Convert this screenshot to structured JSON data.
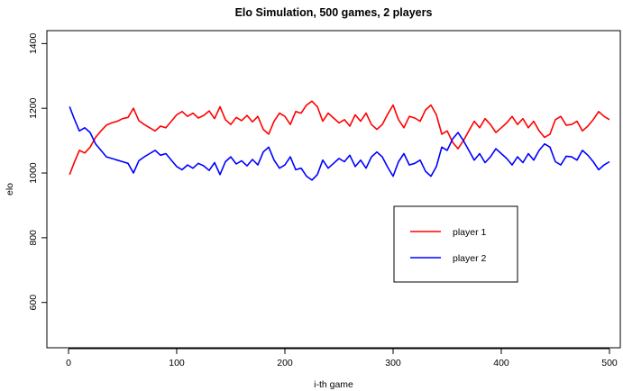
{
  "chart_data": {
    "type": "line",
    "title": "Elo Simulation, 500 games, 2 players",
    "xlabel": "i-th game",
    "ylabel": "elo",
    "xlim": [
      -20,
      510
    ],
    "ylim": [
      460,
      1440
    ],
    "xticks": [
      0,
      100,
      200,
      300,
      400,
      500
    ],
    "yticks": [
      600,
      800,
      1000,
      1200,
      1400
    ],
    "xtick_labels": [
      "0",
      "100",
      "200",
      "300",
      "400",
      "500"
    ],
    "ytick_labels": [
      "600",
      "800",
      "1000",
      "1200",
      "1400"
    ],
    "grid": false,
    "legend_position": "center-right",
    "series": [
      {
        "name": "player 1",
        "color": "#ff0000",
        "x": [
          1,
          5,
          10,
          15,
          20,
          25,
          30,
          35,
          40,
          45,
          50,
          55,
          60,
          65,
          70,
          75,
          80,
          85,
          90,
          95,
          100,
          105,
          110,
          115,
          120,
          125,
          130,
          135,
          140,
          145,
          150,
          155,
          160,
          165,
          170,
          175,
          180,
          185,
          190,
          195,
          200,
          205,
          210,
          215,
          220,
          225,
          230,
          235,
          240,
          245,
          250,
          255,
          260,
          265,
          270,
          275,
          280,
          285,
          290,
          295,
          300,
          305,
          310,
          315,
          320,
          325,
          330,
          335,
          340,
          345,
          350,
          355,
          360,
          365,
          370,
          375,
          380,
          385,
          390,
          395,
          400,
          405,
          410,
          415,
          420,
          425,
          430,
          435,
          440,
          445,
          450,
          455,
          460,
          465,
          470,
          475,
          480,
          485,
          490,
          495,
          500
        ],
        "values": [
          995,
          1030,
          1070,
          1062,
          1080,
          1110,
          1130,
          1148,
          1155,
          1160,
          1168,
          1172,
          1200,
          1162,
          1150,
          1140,
          1130,
          1145,
          1140,
          1160,
          1180,
          1190,
          1175,
          1185,
          1170,
          1178,
          1192,
          1168,
          1205,
          1165,
          1150,
          1172,
          1162,
          1178,
          1158,
          1175,
          1135,
          1120,
          1160,
          1185,
          1175,
          1150,
          1190,
          1185,
          1210,
          1222,
          1205,
          1160,
          1185,
          1170,
          1155,
          1165,
          1145,
          1180,
          1160,
          1185,
          1150,
          1135,
          1150,
          1182,
          1210,
          1165,
          1140,
          1175,
          1170,
          1160,
          1195,
          1210,
          1180,
          1120,
          1130,
          1095,
          1075,
          1100,
          1130,
          1160,
          1140,
          1168,
          1150,
          1125,
          1140,
          1155,
          1175,
          1150,
          1168,
          1140,
          1160,
          1130,
          1110,
          1120,
          1165,
          1175,
          1148,
          1150,
          1160,
          1130,
          1145,
          1165,
          1190,
          1175,
          1165
        ]
      },
      {
        "name": "player 2",
        "color": "#0000ff",
        "x": [
          1,
          5,
          10,
          15,
          20,
          25,
          30,
          35,
          40,
          45,
          50,
          55,
          60,
          65,
          70,
          75,
          80,
          85,
          90,
          95,
          100,
          105,
          110,
          115,
          120,
          125,
          130,
          135,
          140,
          145,
          150,
          155,
          160,
          165,
          170,
          175,
          180,
          185,
          190,
          195,
          200,
          205,
          210,
          215,
          220,
          225,
          230,
          235,
          240,
          245,
          250,
          255,
          260,
          265,
          270,
          275,
          280,
          285,
          290,
          295,
          300,
          305,
          310,
          315,
          320,
          325,
          330,
          335,
          340,
          345,
          350,
          355,
          360,
          365,
          370,
          375,
          380,
          385,
          390,
          395,
          400,
          405,
          410,
          415,
          420,
          425,
          430,
          435,
          440,
          445,
          450,
          455,
          460,
          465,
          470,
          475,
          480,
          485,
          490,
          495,
          500
        ],
        "values": [
          1205,
          1170,
          1130,
          1140,
          1125,
          1090,
          1070,
          1050,
          1045,
          1040,
          1035,
          1030,
          1000,
          1038,
          1050,
          1060,
          1070,
          1055,
          1060,
          1040,
          1020,
          1010,
          1025,
          1015,
          1030,
          1022,
          1008,
          1032,
          995,
          1035,
          1050,
          1028,
          1038,
          1022,
          1042,
          1025,
          1065,
          1080,
          1040,
          1015,
          1025,
          1050,
          1010,
          1015,
          990,
          978,
          995,
          1040,
          1015,
          1030,
          1045,
          1035,
          1055,
          1020,
          1040,
          1015,
          1050,
          1065,
          1050,
          1018,
          990,
          1035,
          1060,
          1025,
          1030,
          1040,
          1005,
          990,
          1020,
          1080,
          1070,
          1105,
          1125,
          1100,
          1070,
          1040,
          1060,
          1032,
          1050,
          1075,
          1060,
          1045,
          1025,
          1050,
          1032,
          1060,
          1040,
          1070,
          1090,
          1080,
          1035,
          1025,
          1052,
          1050,
          1040,
          1070,
          1055,
          1035,
          1010,
          1025,
          1035
        ]
      }
    ]
  }
}
